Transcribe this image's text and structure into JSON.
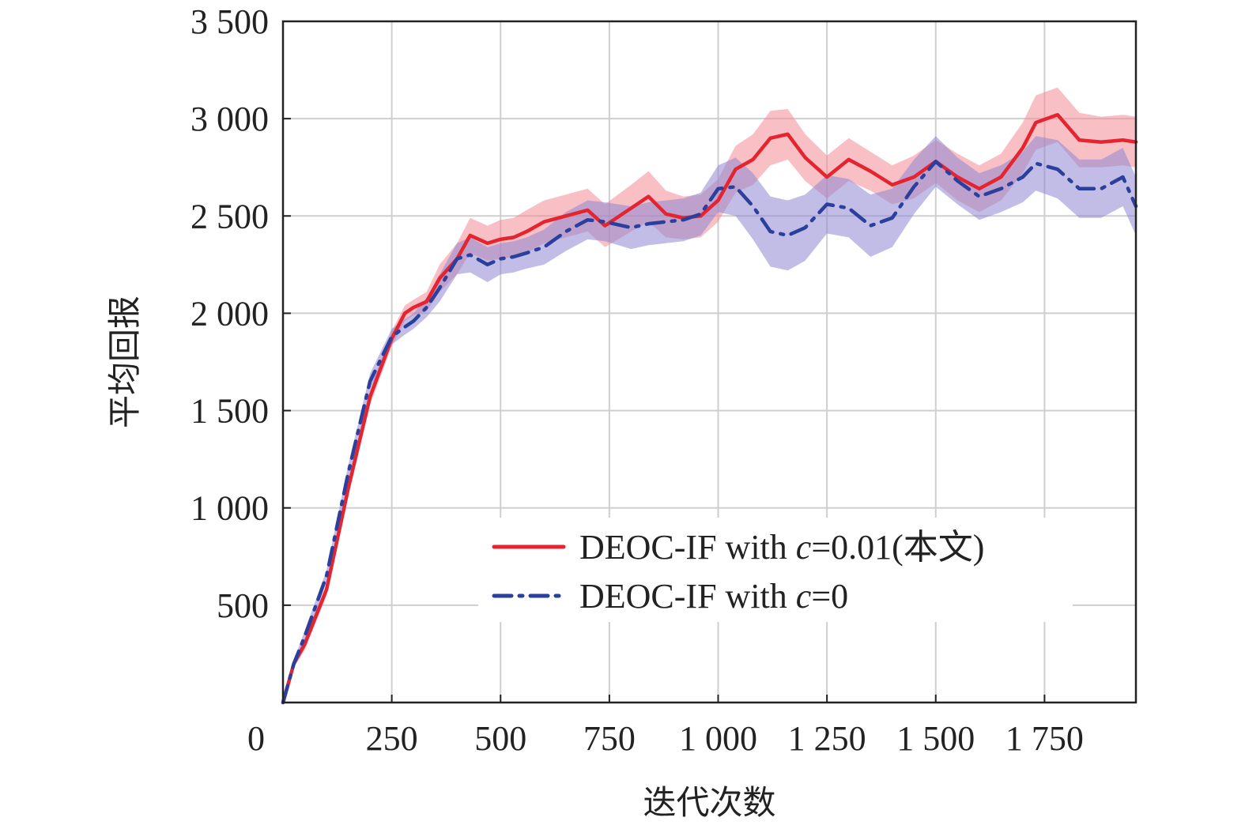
{
  "chart_data": {
    "type": "line",
    "xlabel": "迭代次数",
    "ylabel": "平均回报",
    "xlim": [
      0,
      1960
    ],
    "ylim": [
      0,
      3500
    ],
    "x_ticks": [
      0,
      250,
      500,
      750,
      1000,
      1250,
      1500,
      1750
    ],
    "x_tick_labels": [
      "0",
      "250",
      "500",
      "750",
      "1 000",
      "1 250",
      "1 500",
      "1 750"
    ],
    "y_ticks": [
      500,
      1000,
      1500,
      2000,
      2500,
      3000,
      3500
    ],
    "y_tick_labels": [
      "500",
      "1 000",
      "1 500",
      "2 000",
      "2 500",
      "3 000",
      "3 500"
    ],
    "grid": true,
    "legend_position": "lower-right",
    "series": [
      {
        "name": "DEOC-IF with c=0.01(本文)",
        "legend_prefix": "DEOC-IF with ",
        "legend_var": "c",
        "legend_suffix": "=0.01(本文)",
        "color": "#e4242f",
        "band_color": "#f28a96",
        "style": "solid",
        "x": [
          0,
          25,
          50,
          100,
          150,
          200,
          250,
          280,
          300,
          330,
          360,
          400,
          430,
          470,
          500,
          530,
          560,
          600,
          650,
          700,
          740,
          800,
          840,
          880,
          920,
          960,
          1000,
          1040,
          1080,
          1120,
          1160,
          1200,
          1250,
          1300,
          1350,
          1400,
          1450,
          1500,
          1550,
          1600,
          1650,
          1700,
          1730,
          1780,
          1830,
          1880,
          1930,
          1960
        ],
        "y": [
          0,
          200,
          300,
          580,
          1100,
          1570,
          1870,
          2000,
          2030,
          2060,
          2180,
          2280,
          2400,
          2360,
          2380,
          2390,
          2420,
          2470,
          2500,
          2530,
          2450,
          2540,
          2600,
          2510,
          2490,
          2500,
          2580,
          2740,
          2790,
          2900,
          2920,
          2800,
          2700,
          2790,
          2730,
          2660,
          2700,
          2780,
          2700,
          2640,
          2700,
          2850,
          2980,
          3020,
          2890,
          2880,
          2890,
          2880
        ],
        "band": [
          0,
          20,
          30,
          30,
          40,
          40,
          40,
          40,
          40,
          50,
          70,
          80,
          90,
          90,
          100,
          100,
          110,
          110,
          110,
          110,
          110,
          120,
          130,
          120,
          110,
          110,
          110,
          120,
          130,
          140,
          130,
          120,
          110,
          110,
          100,
          100,
          110,
          110,
          120,
          120,
          120,
          130,
          140,
          140,
          140,
          130,
          130,
          130
        ]
      },
      {
        "name": "DEOC-IF with c=0",
        "legend_prefix": "DEOC-IF with ",
        "legend_var": "c",
        "legend_suffix": "=0",
        "color": "#2b3f9c",
        "band_color": "#8e87d4",
        "style": "dashdot",
        "x": [
          0,
          25,
          50,
          100,
          150,
          200,
          250,
          280,
          300,
          330,
          360,
          400,
          430,
          470,
          500,
          530,
          560,
          600,
          650,
          700,
          740,
          800,
          840,
          880,
          920,
          960,
          1000,
          1040,
          1080,
          1120,
          1160,
          1200,
          1250,
          1300,
          1350,
          1400,
          1450,
          1500,
          1550,
          1600,
          1650,
          1700,
          1730,
          1780,
          1830,
          1880,
          1930,
          1960
        ],
        "y": [
          0,
          200,
          340,
          650,
          1180,
          1650,
          1880,
          1930,
          1960,
          2030,
          2130,
          2280,
          2300,
          2250,
          2280,
          2290,
          2310,
          2340,
          2420,
          2480,
          2470,
          2440,
          2460,
          2470,
          2480,
          2510,
          2640,
          2650,
          2550,
          2420,
          2400,
          2440,
          2560,
          2540,
          2450,
          2490,
          2650,
          2780,
          2680,
          2600,
          2640,
          2700,
          2770,
          2740,
          2640,
          2640,
          2700,
          2550
        ],
        "band": [
          0,
          20,
          30,
          30,
          40,
          40,
          40,
          40,
          40,
          50,
          70,
          80,
          90,
          90,
          80,
          80,
          80,
          90,
          100,
          100,
          100,
          110,
          110,
          110,
          110,
          110,
          120,
          150,
          170,
          180,
          180,
          170,
          150,
          150,
          160,
          150,
          140,
          130,
          120,
          120,
          120,
          130,
          140,
          150,
          150,
          150,
          150,
          150
        ]
      }
    ]
  }
}
